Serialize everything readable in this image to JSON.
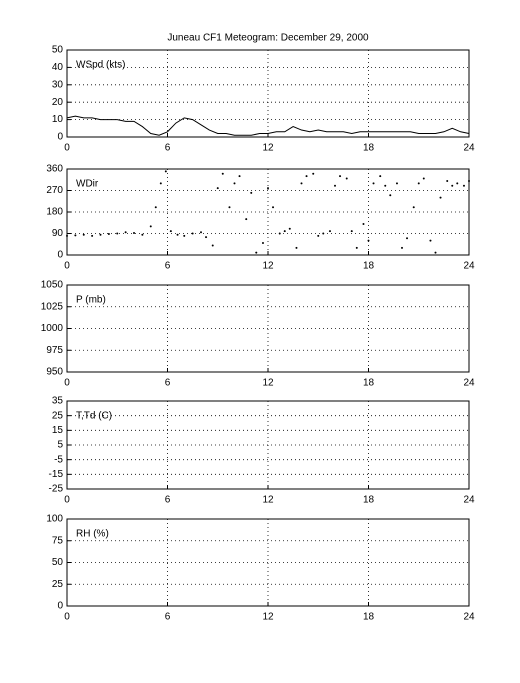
{
  "title": "Juneau CF1 Meteogram:   December 29, 2000",
  "chart_data": [
    {
      "type": "line",
      "label": "WSpd (kts)",
      "xlim": [
        0,
        24
      ],
      "xticks": [
        0,
        6,
        12,
        18,
        24
      ],
      "ylim": [
        0,
        50
      ],
      "yticks": [
        0,
        10,
        20,
        30,
        40,
        50
      ],
      "grid": true,
      "color": "#000000",
      "x": [
        0,
        0.5,
        1,
        1.5,
        2,
        2.5,
        3,
        3.5,
        4,
        4.5,
        5,
        5.5,
        6,
        6.5,
        7,
        7.5,
        8,
        8.5,
        9,
        9.5,
        10,
        10.5,
        11,
        11.5,
        12,
        12.5,
        13,
        13.5,
        14,
        14.5,
        15,
        15.5,
        16,
        16.5,
        17,
        17.5,
        18,
        18.5,
        19,
        19.5,
        20,
        20.5,
        21,
        21.5,
        22,
        22.5,
        23,
        23.5,
        24
      ],
      "values": [
        11,
        12,
        11,
        11,
        10,
        10,
        10,
        9,
        9,
        6,
        2,
        1,
        3,
        8,
        11,
        10,
        7,
        4,
        2,
        2,
        1,
        1,
        1,
        2,
        2,
        3,
        3,
        6,
        4,
        3,
        4,
        3,
        3,
        3,
        2,
        3,
        3,
        3,
        3,
        3,
        3,
        3,
        2,
        2,
        2,
        3,
        5,
        3,
        2
      ]
    },
    {
      "type": "scatter",
      "label": "WDir",
      "xlim": [
        0,
        24
      ],
      "xticks": [
        0,
        6,
        12,
        18,
        24
      ],
      "ylim": [
        0,
        360
      ],
      "yticks": [
        0,
        90,
        180,
        270,
        360
      ],
      "grid": true,
      "color": "#000000",
      "x": [
        0,
        0.5,
        1,
        1.5,
        2,
        2.5,
        3,
        3.5,
        4,
        4.5,
        5,
        5.3,
        5.6,
        5.9,
        6.2,
        6.6,
        7,
        7.5,
        8,
        8.3,
        8.7,
        9,
        9.3,
        9.7,
        10,
        10.3,
        10.7,
        11,
        11.3,
        11.7,
        12,
        12.3,
        12.7,
        13,
        13.3,
        13.7,
        14,
        14.3,
        14.7,
        15,
        15.3,
        15.7,
        16,
        16.3,
        16.7,
        17,
        17.3,
        17.7,
        18,
        18.3,
        18.7,
        19,
        19.3,
        19.7,
        20,
        20.3,
        20.7,
        21,
        21.3,
        21.7,
        22,
        22.3,
        22.7,
        23,
        23.3,
        23.7,
        24
      ],
      "values": [
        80,
        82,
        85,
        80,
        85,
        88,
        90,
        95,
        92,
        85,
        120,
        200,
        300,
        350,
        100,
        85,
        80,
        90,
        95,
        75,
        40,
        280,
        340,
        200,
        300,
        330,
        150,
        260,
        10,
        50,
        280,
        200,
        90,
        100,
        110,
        30,
        300,
        330,
        340,
        80,
        90,
        100,
        290,
        330,
        320,
        100,
        30,
        130,
        60,
        300,
        330,
        290,
        250,
        300,
        30,
        70,
        200,
        300,
        320,
        60,
        10,
        240,
        310,
        290,
        300,
        290,
        310
      ]
    },
    {
      "type": "line",
      "label": "P (mb)",
      "xlim": [
        0,
        24
      ],
      "xticks": [
        0,
        6,
        12,
        18,
        24
      ],
      "ylim": [
        950,
        1050
      ],
      "yticks": [
        950,
        975,
        1000,
        1025,
        1050
      ],
      "grid": true
    },
    {
      "type": "line",
      "label": "T,Td (C)",
      "xlim": [
        0,
        24
      ],
      "xticks": [
        0,
        6,
        12,
        18,
        24
      ],
      "ylim": [
        -25,
        35
      ],
      "yticks": [
        -25,
        -15,
        -5,
        5,
        15,
        25,
        35
      ],
      "grid": true
    },
    {
      "type": "line",
      "label": "RH (%)",
      "xlim": [
        0,
        24
      ],
      "xticks": [
        0,
        6,
        12,
        18,
        24
      ],
      "ylim": [
        0,
        100
      ],
      "yticks": [
        0,
        25,
        50,
        75,
        100
      ],
      "grid": true
    }
  ]
}
